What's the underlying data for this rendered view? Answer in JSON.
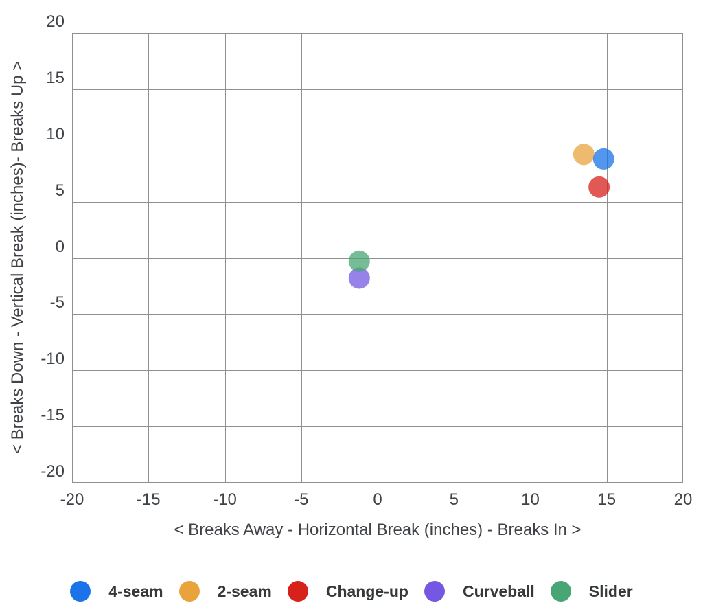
{
  "chart_data": {
    "type": "scatter",
    "title": "",
    "xlabel": "< Breaks Away - Horizontal Break (inches) - Breaks In >",
    "ylabel": "< Breaks Down - Vertical Break (inches)- Breaks Up >",
    "xlim": [
      -20,
      20
    ],
    "ylim": [
      -20,
      20
    ],
    "x_ticks": [
      -20,
      -15,
      -10,
      -5,
      0,
      5,
      10,
      15,
      20
    ],
    "y_ticks": [
      20,
      15,
      10,
      5,
      0,
      -5,
      -10,
      -15,
      -20
    ],
    "grid": true,
    "legend_position": "bottom",
    "point_radius_px": 15.5,
    "point_opacity": 0.75,
    "series": [
      {
        "name": "4-seam",
        "color": "#1a73e8",
        "points": [
          {
            "x": 14.8,
            "y": 8.8
          }
        ]
      },
      {
        "name": "2-seam",
        "color": "#e8a33d",
        "points": [
          {
            "x": 13.5,
            "y": 9.2
          }
        ]
      },
      {
        "name": "Change-up",
        "color": "#d7221c",
        "points": [
          {
            "x": 14.5,
            "y": 6.3
          }
        ]
      },
      {
        "name": "Curveball",
        "color": "#7458e2",
        "points": [
          {
            "x": -1.2,
            "y": -1.8
          }
        ]
      },
      {
        "name": "Slider",
        "color": "#48a674",
        "points": [
          {
            "x": -1.2,
            "y": -0.3
          }
        ]
      }
    ],
    "draw_order": [
      "2-seam",
      "Change-up",
      "Curveball",
      "Slider",
      "4-seam"
    ]
  },
  "colors": {
    "background": "#ffffff",
    "grid": "#909090",
    "axis_text": "#3f4347",
    "legend_text": "#35393c"
  }
}
